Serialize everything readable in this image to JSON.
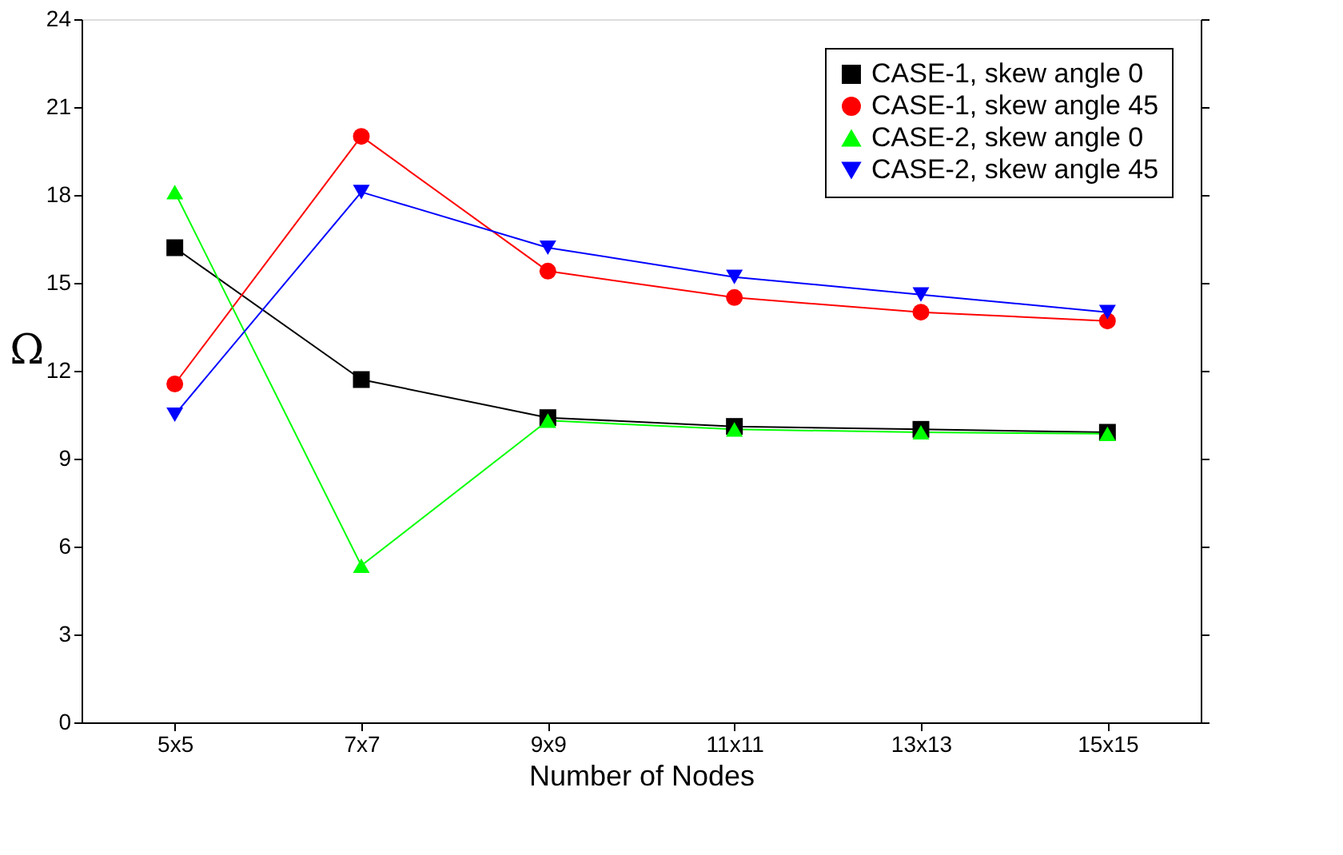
{
  "chart_data": {
    "type": "line",
    "xlabel": "Number of Nodes",
    "ylabel": "Ω",
    "categories": [
      "5x5",
      "7x7",
      "9x9",
      "11x11",
      "13x13",
      "15x15"
    ],
    "ylim": [
      0,
      24
    ],
    "yticks": [
      0,
      3,
      6,
      9,
      12,
      15,
      18,
      21,
      24
    ],
    "grid": false,
    "legend": "top right",
    "line_style": "solid",
    "series": [
      {
        "name": "CASE-1, skew angle 0",
        "color": "#000000",
        "marker": "square",
        "values": [
          16.2,
          11.7,
          10.4,
          10.1,
          10.0,
          9.9
        ]
      },
      {
        "name": "CASE-1, skew angle 45",
        "color": "#ff0000",
        "marker": "circle",
        "values": [
          11.55,
          20.0,
          15.4,
          14.5,
          14.0,
          13.7
        ]
      },
      {
        "name": "CASE-2, skew angle 0",
        "color": "#00ff00",
        "marker": "triangle-up",
        "values": [
          18.1,
          5.35,
          10.3,
          10.0,
          9.9,
          9.85
        ]
      },
      {
        "name": "CASE-2, skew angle 45",
        "color": "#0000ff",
        "marker": "triangle-down",
        "values": [
          10.5,
          18.1,
          16.2,
          15.2,
          14.6,
          14.0
        ]
      }
    ]
  }
}
